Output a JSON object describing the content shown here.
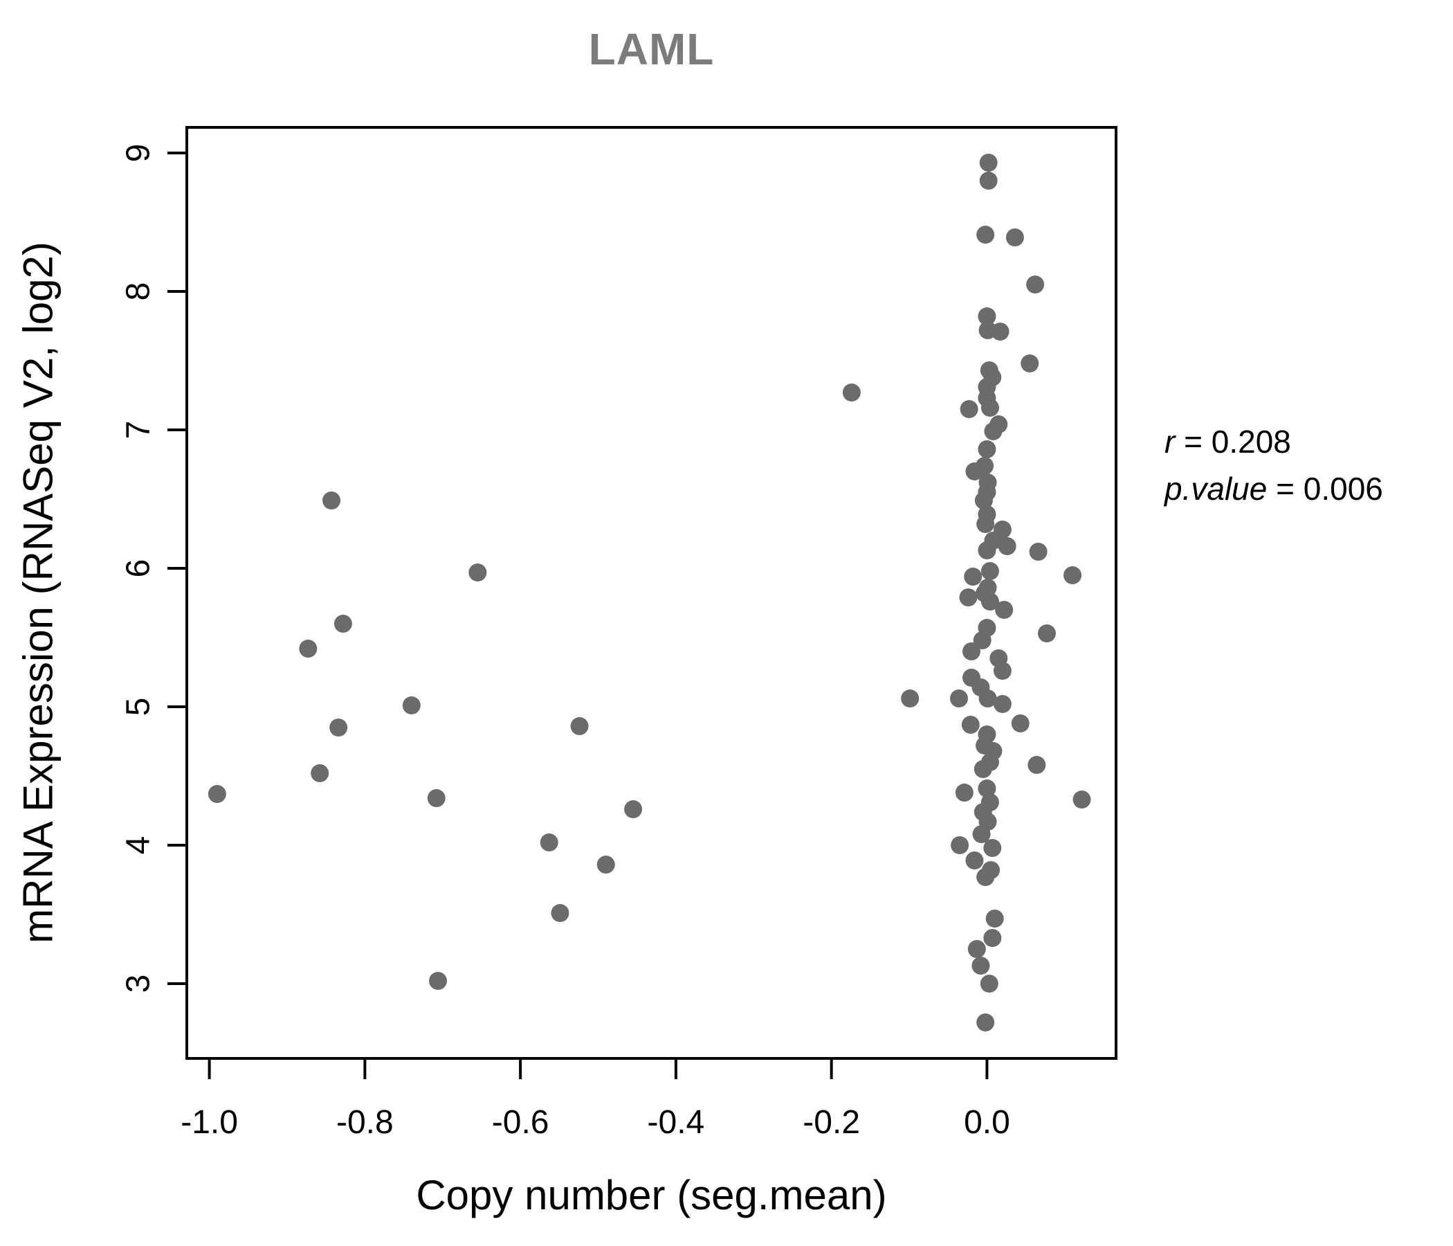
{
  "chart_data": {
    "type": "scatter",
    "title": "LAML",
    "title_color": "#7b7b7b",
    "xlabel": "Copy number (seg.mean)",
    "ylabel": "mRNA Expression (RNASeq V2, log2)",
    "xlim": [
      -1.029,
      0.166
    ],
    "ylim": [
      2.46,
      9.185
    ],
    "grid": false,
    "legend_position": "none",
    "point_color": "#6b6b6b",
    "axis_color": "#000000",
    "xticks": {
      "values": [
        -1.0,
        -0.8,
        -0.6,
        -0.4,
        -0.2,
        0.0
      ],
      "labels": [
        "-1.0",
        "-0.8",
        "-0.6",
        "-0.4",
        "-0.2",
        "0.0"
      ]
    },
    "yticks": {
      "values": [
        3,
        4,
        5,
        6,
        7,
        8,
        9
      ],
      "labels": [
        "3",
        "4",
        "5",
        "6",
        "7",
        "8",
        "9"
      ]
    },
    "annotation": {
      "r_label": "r",
      "r_value": "0.208",
      "p_label": "p.value",
      "p_value": "0.006",
      "equals": " = "
    },
    "points": [
      [
        -0.99,
        4.37
      ],
      [
        -0.873,
        5.42
      ],
      [
        -0.858,
        4.52
      ],
      [
        -0.843,
        6.49
      ],
      [
        -0.828,
        5.6
      ],
      [
        -0.834,
        4.85
      ],
      [
        -0.74,
        5.01
      ],
      [
        -0.708,
        4.34
      ],
      [
        -0.706,
        3.02
      ],
      [
        -0.655,
        5.97
      ],
      [
        -0.563,
        4.02
      ],
      [
        -0.549,
        3.51
      ],
      [
        -0.524,
        4.86
      ],
      [
        -0.49,
        3.86
      ],
      [
        -0.455,
        4.26
      ],
      [
        -0.174,
        7.27
      ],
      [
        -0.099,
        5.06
      ],
      [
        0.002,
        8.93
      ],
      [
        0.002,
        8.8
      ],
      [
        -0.002,
        8.41
      ],
      [
        0.036,
        8.39
      ],
      [
        0.062,
        8.05
      ],
      [
        0.0,
        7.82
      ],
      [
        0.001,
        7.72
      ],
      [
        0.017,
        7.71
      ],
      [
        0.055,
        7.48
      ],
      [
        0.003,
        7.43
      ],
      [
        0.007,
        7.38
      ],
      [
        0.0,
        7.31
      ],
      [
        0.0,
        7.23
      ],
      [
        0.004,
        7.16
      ],
      [
        -0.023,
        7.15
      ],
      [
        0.015,
        7.04
      ],
      [
        0.008,
        6.99
      ],
      [
        0.0,
        6.86
      ],
      [
        -0.003,
        6.74
      ],
      [
        -0.016,
        6.7
      ],
      [
        0.001,
        6.62
      ],
      [
        0.0,
        6.55
      ],
      [
        -0.004,
        6.49
      ],
      [
        0.0,
        6.39
      ],
      [
        -0.002,
        6.32
      ],
      [
        0.02,
        6.28
      ],
      [
        0.008,
        6.2
      ],
      [
        0.026,
        6.16
      ],
      [
        0.0,
        6.13
      ],
      [
        0.066,
        6.12
      ],
      [
        0.004,
        5.98
      ],
      [
        0.11,
        5.95
      ],
      [
        -0.018,
        5.94
      ],
      [
        0.001,
        5.86
      ],
      [
        -0.003,
        5.82
      ],
      [
        -0.024,
        5.79
      ],
      [
        0.004,
        5.76
      ],
      [
        0.022,
        5.7
      ],
      [
        0.0,
        5.57
      ],
      [
        0.077,
        5.53
      ],
      [
        -0.006,
        5.48
      ],
      [
        -0.02,
        5.4
      ],
      [
        0.015,
        5.35
      ],
      [
        0.02,
        5.26
      ],
      [
        -0.02,
        5.21
      ],
      [
        -0.008,
        5.14
      ],
      [
        -0.036,
        5.06
      ],
      [
        0.001,
        5.06
      ],
      [
        0.02,
        5.02
      ],
      [
        0.043,
        4.88
      ],
      [
        -0.021,
        4.87
      ],
      [
        0.0,
        4.8
      ],
      [
        -0.003,
        4.72
      ],
      [
        0.008,
        4.68
      ],
      [
        0.004,
        4.6
      ],
      [
        0.064,
        4.58
      ],
      [
        -0.005,
        4.55
      ],
      [
        0.0,
        4.41
      ],
      [
        -0.029,
        4.38
      ],
      [
        0.122,
        4.33
      ],
      [
        0.004,
        4.31
      ],
      [
        -0.005,
        4.24
      ],
      [
        0.001,
        4.17
      ],
      [
        -0.007,
        4.08
      ],
      [
        -0.035,
        4.0
      ],
      [
        0.007,
        3.98
      ],
      [
        -0.016,
        3.89
      ],
      [
        0.005,
        3.82
      ],
      [
        -0.002,
        3.77
      ],
      [
        0.01,
        3.47
      ],
      [
        0.007,
        3.33
      ],
      [
        -0.013,
        3.25
      ],
      [
        -0.008,
        3.13
      ],
      [
        0.003,
        3.0
      ],
      [
        -0.002,
        2.72
      ]
    ]
  }
}
